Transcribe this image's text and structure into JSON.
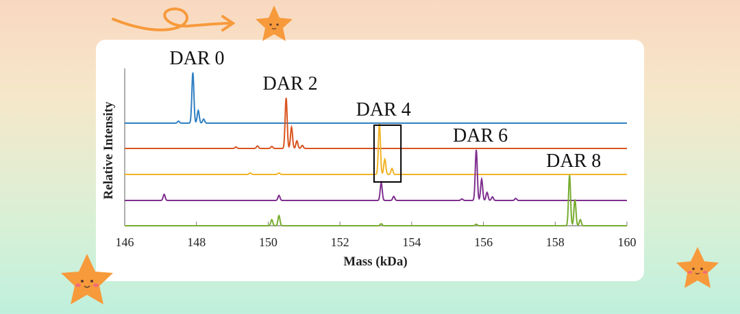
{
  "chart_data": {
    "type": "line",
    "title": "",
    "xlabel": "Mass (kDa)",
    "ylabel": "Relative Intensity",
    "xlim": [
      146,
      160
    ],
    "xticks": [
      "146",
      "148",
      "150",
      "152",
      "154",
      "156",
      "158",
      "160"
    ],
    "grid": false,
    "legend": "none",
    "series": [
      {
        "name": "DAR 0",
        "color": "#2f7fc1",
        "baseline_index": 0,
        "peaks": [
          [
            147.5,
            0.04
          ],
          [
            147.9,
            1.0
          ],
          [
            148.05,
            0.25
          ],
          [
            148.2,
            0.08
          ]
        ]
      },
      {
        "name": "DAR 2",
        "color": "#d9541e",
        "baseline_index": 1,
        "peaks": [
          [
            149.1,
            0.03
          ],
          [
            149.7,
            0.05
          ],
          [
            150.1,
            0.04
          ],
          [
            150.5,
            1.0
          ],
          [
            150.65,
            0.42
          ],
          [
            150.8,
            0.15
          ],
          [
            150.95,
            0.06
          ]
        ]
      },
      {
        "name": "DAR 4",
        "color": "#f2b326",
        "baseline_index": 2,
        "peaks": [
          [
            149.5,
            0.03
          ],
          [
            150.3,
            0.03
          ],
          [
            153.1,
            1.0
          ],
          [
            153.25,
            0.3
          ],
          [
            153.45,
            0.12
          ]
        ]
      },
      {
        "name": "DAR 6",
        "color": "#7e2f8e",
        "baseline_index": 3,
        "peaks": [
          [
            147.1,
            0.12
          ],
          [
            150.3,
            0.1
          ],
          [
            153.15,
            0.35
          ],
          [
            153.5,
            0.08
          ],
          [
            155.4,
            0.03
          ],
          [
            155.8,
            1.0
          ],
          [
            155.95,
            0.42
          ],
          [
            156.1,
            0.16
          ],
          [
            156.25,
            0.07
          ],
          [
            156.9,
            0.04
          ]
        ]
      },
      {
        "name": "DAR 8",
        "color": "#77ac30",
        "baseline_index": 4,
        "peaks": [
          [
            150.1,
            0.12
          ],
          [
            150.3,
            0.2
          ],
          [
            153.15,
            0.04
          ],
          [
            155.8,
            0.03
          ],
          [
            158.4,
            1.0
          ],
          [
            158.55,
            0.52
          ],
          [
            158.7,
            0.12
          ]
        ]
      }
    ],
    "annotations": [
      {
        "text": "DAR 0",
        "series": 0
      },
      {
        "text": "DAR 2",
        "series": 1
      },
      {
        "text": "DAR 4",
        "series": 2
      },
      {
        "text": "DAR 6",
        "series": 3
      },
      {
        "text": "DAR 8",
        "series": 4
      }
    ],
    "highlight_box": {
      "x_range": [
        152.95,
        153.7
      ],
      "color": "#000000"
    }
  },
  "decorations": {
    "stars": [
      "star-icon",
      "star-icon",
      "star-icon"
    ],
    "arrow": "arrow-icon",
    "star_color": "#f79a3c"
  }
}
